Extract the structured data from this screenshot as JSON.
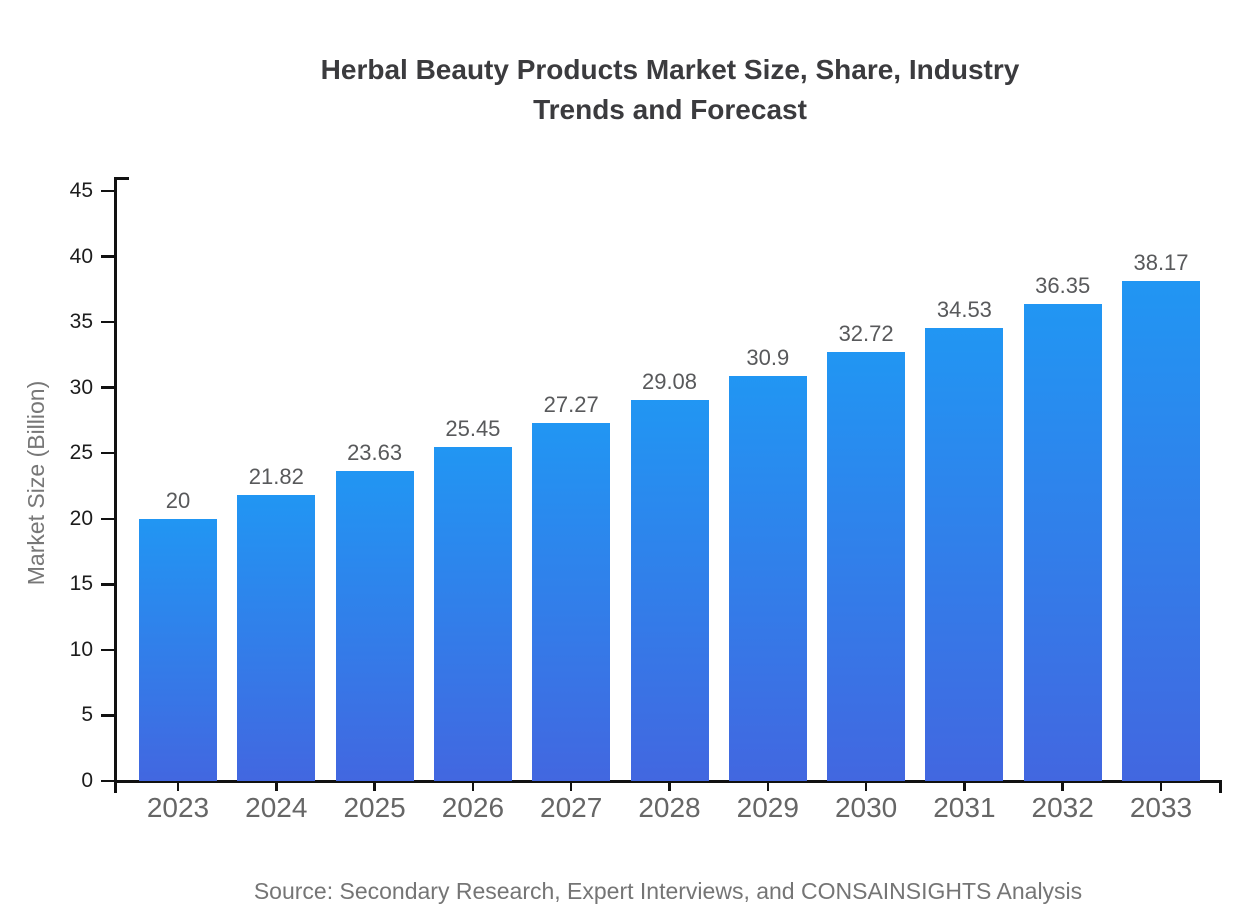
{
  "chart_data": {
    "type": "bar",
    "title": "Herbal Beauty Products Market Size, Share, Industry Trends and Forecast",
    "xlabel": "",
    "ylabel": "Market Size (Billion)",
    "source": "Source: Secondary Research, Expert Interviews, and CONSAINSIGHTS Analysis",
    "categories": [
      "2023",
      "2024",
      "2025",
      "2026",
      "2027",
      "2028",
      "2029",
      "2030",
      "2031",
      "2032",
      "2033"
    ],
    "values": [
      20,
      21.82,
      23.63,
      25.45,
      27.27,
      29.08,
      30.9,
      32.72,
      34.53,
      36.35,
      38.17
    ],
    "value_labels": [
      "20",
      "21.82",
      "23.63",
      "25.45",
      "27.27",
      "29.08",
      "30.9",
      "32.72",
      "34.53",
      "36.35",
      "38.17"
    ],
    "ylim": [
      0,
      45
    ],
    "yticks": [
      0,
      5,
      10,
      15,
      20,
      25,
      30,
      35,
      40,
      45
    ],
    "grid": false,
    "legend_position": "none",
    "bar_gradient": {
      "top": "#2196f3",
      "bottom": "#4267e0"
    }
  },
  "colors": {
    "background": "#ffffff",
    "axis": "#111111",
    "title_text": "#3b3b3e",
    "ytick_text": "#1c1c1c",
    "xtick_text": "#666666",
    "value_text": "#58595b",
    "ylabel_text": "#777777",
    "source_text": "#757575"
  }
}
